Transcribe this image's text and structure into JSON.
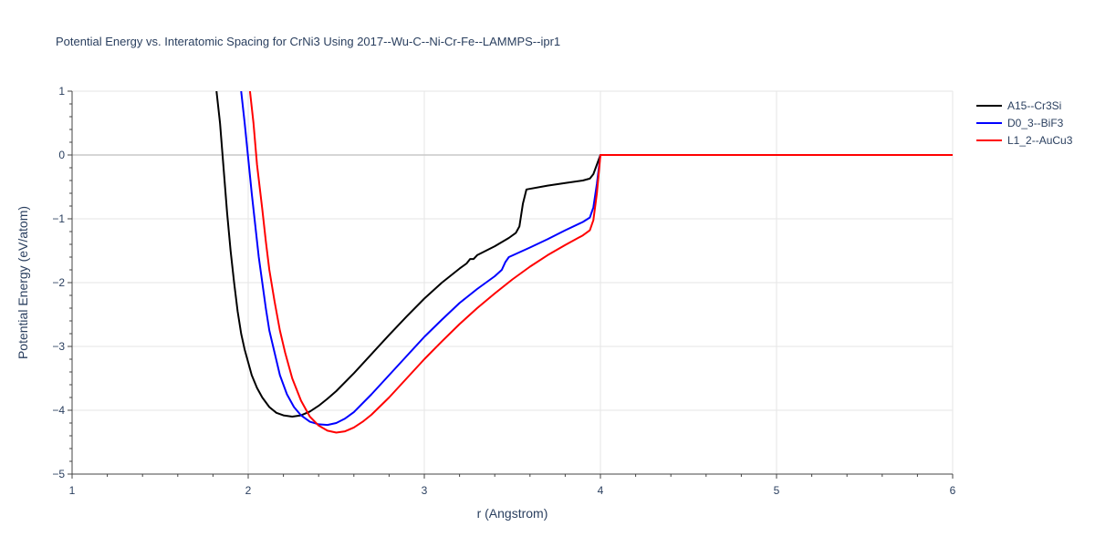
{
  "chart_data": {
    "type": "line",
    "title": "Potential Energy vs. Interatomic Spacing for CrNi3 Using 2017--Wu-C--Ni-Cr-Fe--LAMMPS--ipr1",
    "xlabel": "r (Angstrom)",
    "ylabel": "Potential Energy (eV/atom)",
    "xlim": [
      1,
      6
    ],
    "ylim": [
      -5,
      1
    ],
    "x_ticks": [
      "1",
      "2",
      "3",
      "4",
      "5",
      "6"
    ],
    "y_ticks": [
      "1",
      "0",
      "−1",
      "−2",
      "−3",
      "−4",
      "−5"
    ],
    "grid": true,
    "legend_position": "top-right",
    "series": [
      {
        "name": "A15--Cr3Si",
        "color": "#000000",
        "points": [
          [
            1.82,
            1.0
          ],
          [
            1.84,
            0.5
          ],
          [
            1.86,
            -0.2
          ],
          [
            1.88,
            -0.9
          ],
          [
            1.9,
            -1.5
          ],
          [
            1.92,
            -2.0
          ],
          [
            1.94,
            -2.45
          ],
          [
            1.96,
            -2.8
          ],
          [
            1.98,
            -3.05
          ],
          [
            2.0,
            -3.25
          ],
          [
            2.02,
            -3.45
          ],
          [
            2.05,
            -3.65
          ],
          [
            2.08,
            -3.8
          ],
          [
            2.12,
            -3.95
          ],
          [
            2.16,
            -4.04
          ],
          [
            2.2,
            -4.08
          ],
          [
            2.25,
            -4.1
          ],
          [
            2.3,
            -4.08
          ],
          [
            2.35,
            -4.02
          ],
          [
            2.4,
            -3.93
          ],
          [
            2.45,
            -3.82
          ],
          [
            2.5,
            -3.7
          ],
          [
            2.6,
            -3.42
          ],
          [
            2.7,
            -3.12
          ],
          [
            2.8,
            -2.82
          ],
          [
            2.9,
            -2.53
          ],
          [
            3.0,
            -2.25
          ],
          [
            3.1,
            -2.0
          ],
          [
            3.2,
            -1.78
          ],
          [
            3.24,
            -1.7
          ],
          [
            3.26,
            -1.63
          ],
          [
            3.28,
            -1.63
          ],
          [
            3.3,
            -1.57
          ],
          [
            3.4,
            -1.43
          ],
          [
            3.48,
            -1.3
          ],
          [
            3.52,
            -1.22
          ],
          [
            3.54,
            -1.12
          ],
          [
            3.56,
            -0.76
          ],
          [
            3.58,
            -0.54
          ],
          [
            3.7,
            -0.48
          ],
          [
            3.8,
            -0.44
          ],
          [
            3.9,
            -0.4
          ],
          [
            3.94,
            -0.37
          ],
          [
            3.96,
            -0.3
          ],
          [
            3.98,
            -0.15
          ],
          [
            4.0,
            0.0
          ],
          [
            6.0,
            0.0
          ]
        ]
      },
      {
        "name": "D0_3--BiF3",
        "color": "#0000ff",
        "points": [
          [
            1.96,
            1.0
          ],
          [
            1.98,
            0.5
          ],
          [
            2.0,
            -0.05
          ],
          [
            2.02,
            -0.6
          ],
          [
            2.04,
            -1.1
          ],
          [
            2.06,
            -1.6
          ],
          [
            2.08,
            -2.0
          ],
          [
            2.1,
            -2.4
          ],
          [
            2.12,
            -2.75
          ],
          [
            2.15,
            -3.1
          ],
          [
            2.18,
            -3.45
          ],
          [
            2.22,
            -3.75
          ],
          [
            2.26,
            -3.95
          ],
          [
            2.3,
            -4.08
          ],
          [
            2.35,
            -4.18
          ],
          [
            2.4,
            -4.22
          ],
          [
            2.45,
            -4.23
          ],
          [
            2.5,
            -4.2
          ],
          [
            2.55,
            -4.13
          ],
          [
            2.6,
            -4.03
          ],
          [
            2.7,
            -3.75
          ],
          [
            2.8,
            -3.45
          ],
          [
            2.9,
            -3.15
          ],
          [
            3.0,
            -2.85
          ],
          [
            3.1,
            -2.58
          ],
          [
            3.2,
            -2.32
          ],
          [
            3.3,
            -2.1
          ],
          [
            3.4,
            -1.9
          ],
          [
            3.44,
            -1.8
          ],
          [
            3.46,
            -1.68
          ],
          [
            3.48,
            -1.6
          ],
          [
            3.6,
            -1.45
          ],
          [
            3.7,
            -1.32
          ],
          [
            3.8,
            -1.18
          ],
          [
            3.9,
            -1.05
          ],
          [
            3.94,
            -0.98
          ],
          [
            3.96,
            -0.82
          ],
          [
            3.98,
            -0.45
          ],
          [
            4.0,
            0.0
          ],
          [
            6.0,
            0.0
          ]
        ]
      },
      {
        "name": "L1_2--AuCu3",
        "color": "#ff0000",
        "points": [
          [
            2.01,
            1.0
          ],
          [
            2.03,
            0.5
          ],
          [
            2.05,
            -0.15
          ],
          [
            2.08,
            -0.85
          ],
          [
            2.1,
            -1.35
          ],
          [
            2.12,
            -1.8
          ],
          [
            2.15,
            -2.3
          ],
          [
            2.18,
            -2.75
          ],
          [
            2.21,
            -3.1
          ],
          [
            2.25,
            -3.5
          ],
          [
            2.3,
            -3.85
          ],
          [
            2.35,
            -4.1
          ],
          [
            2.4,
            -4.24
          ],
          [
            2.45,
            -4.32
          ],
          [
            2.5,
            -4.35
          ],
          [
            2.55,
            -4.33
          ],
          [
            2.6,
            -4.27
          ],
          [
            2.65,
            -4.18
          ],
          [
            2.7,
            -4.07
          ],
          [
            2.8,
            -3.8
          ],
          [
            2.9,
            -3.5
          ],
          [
            3.0,
            -3.2
          ],
          [
            3.1,
            -2.92
          ],
          [
            3.2,
            -2.65
          ],
          [
            3.3,
            -2.4
          ],
          [
            3.4,
            -2.17
          ],
          [
            3.5,
            -1.95
          ],
          [
            3.6,
            -1.75
          ],
          [
            3.7,
            -1.57
          ],
          [
            3.8,
            -1.41
          ],
          [
            3.9,
            -1.26
          ],
          [
            3.94,
            -1.18
          ],
          [
            3.96,
            -1.02
          ],
          [
            3.98,
            -0.6
          ],
          [
            4.0,
            0.0
          ],
          [
            6.0,
            0.0
          ]
        ]
      }
    ]
  }
}
